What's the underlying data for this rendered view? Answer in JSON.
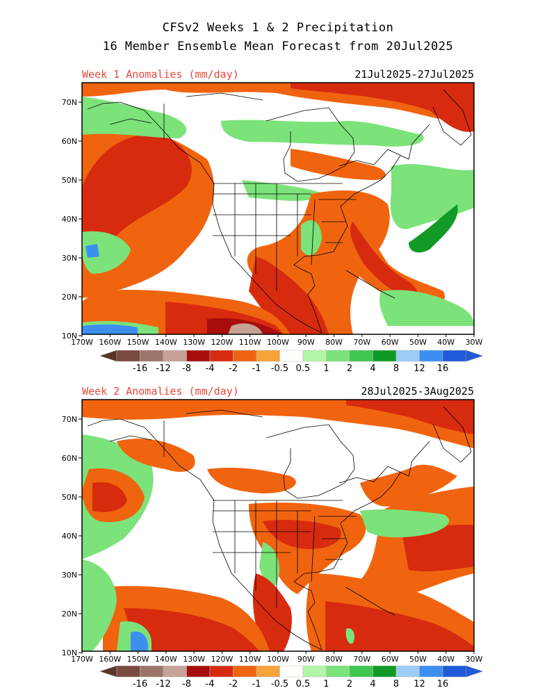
{
  "title_line1": "CFSv2 Weeks 1 & 2 Precipitation",
  "title_line2": "16 Member Ensemble Mean Forecast from 20Jul2025",
  "panels": [
    {
      "label": "Week 1 Anomalies (mm/day)",
      "dates": "21Jul2025-27Jul2025"
    },
    {
      "label": "Week 2 Anomalies (mm/day)",
      "dates": "28Jul2025-3Aug2025"
    }
  ],
  "lat_labels": [
    "70N",
    "60N",
    "50N",
    "40N",
    "30N",
    "20N",
    "10N"
  ],
  "lon_labels": [
    "170W",
    "160W",
    "150W",
    "140W",
    "130W",
    "120W",
    "110W",
    "100W",
    "90W",
    "80W",
    "70W",
    "60W",
    "50W",
    "40W",
    "30W"
  ],
  "colorbar": {
    "labels": [
      "-16",
      "-12",
      "-8",
      "-4",
      "-2",
      "-1",
      "-0.5",
      "0.5",
      "1",
      "2",
      "4",
      "8",
      "12",
      "16"
    ],
    "colors": [
      "#7a4a3e",
      "#9d7468",
      "#c6a196",
      "#a80d0d",
      "#d72b10",
      "#f0640f",
      "#f6a33a",
      "#ffffff",
      "#b3f5a8",
      "#7ce27a",
      "#3ec74e",
      "#119a25",
      "#9bcdf5",
      "#3c8ff0",
      "#1f5ad8"
    ],
    "low_end_color": "#5c3428",
    "high_end_color": "#1f5ad8"
  }
}
